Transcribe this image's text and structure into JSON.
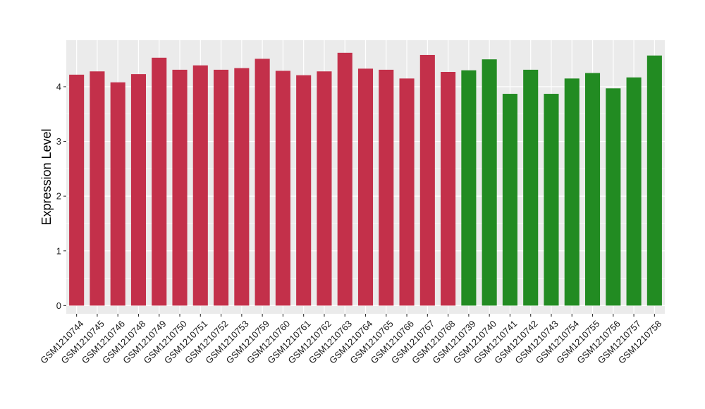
{
  "chart_data": {
    "type": "bar",
    "title": "",
    "xlabel": "",
    "ylabel": "Expression Level",
    "ylim": [
      -0.15,
      4.85
    ],
    "yticks": [
      0,
      1,
      2,
      3,
      4
    ],
    "grid": true,
    "colors": {
      "group_a": "#C3304A",
      "group_b": "#228B22",
      "panel_bg": "#EBEBEB",
      "grid": "#FFFFFF"
    },
    "categories": [
      "GSM1210744",
      "GSM1210745",
      "GSM1210746",
      "GSM1210748",
      "GSM1210749",
      "GSM1210750",
      "GSM1210751",
      "GSM1210752",
      "GSM1210753",
      "GSM1210759",
      "GSM1210760",
      "GSM1210761",
      "GSM1210762",
      "GSM1210763",
      "GSM1210764",
      "GSM1210765",
      "GSM1210766",
      "GSM1210767",
      "GSM1210768",
      "GSM1210739",
      "GSM1210740",
      "GSM1210741",
      "GSM1210742",
      "GSM1210743",
      "GSM1210754",
      "GSM1210755",
      "GSM1210756",
      "GSM1210757",
      "GSM1210758"
    ],
    "values": [
      4.22,
      4.28,
      4.08,
      4.23,
      4.53,
      4.31,
      4.39,
      4.31,
      4.34,
      4.51,
      4.29,
      4.21,
      4.28,
      4.62,
      4.33,
      4.31,
      4.15,
      4.58,
      4.27,
      4.3,
      4.5,
      3.87,
      4.31,
      3.87,
      4.15,
      4.25,
      3.97,
      4.17,
      4.57
    ],
    "groups": [
      "a",
      "a",
      "a",
      "a",
      "a",
      "a",
      "a",
      "a",
      "a",
      "a",
      "a",
      "a",
      "a",
      "a",
      "a",
      "a",
      "a",
      "a",
      "a",
      "b",
      "b",
      "b",
      "b",
      "b",
      "b",
      "b",
      "b",
      "b",
      "b"
    ]
  }
}
